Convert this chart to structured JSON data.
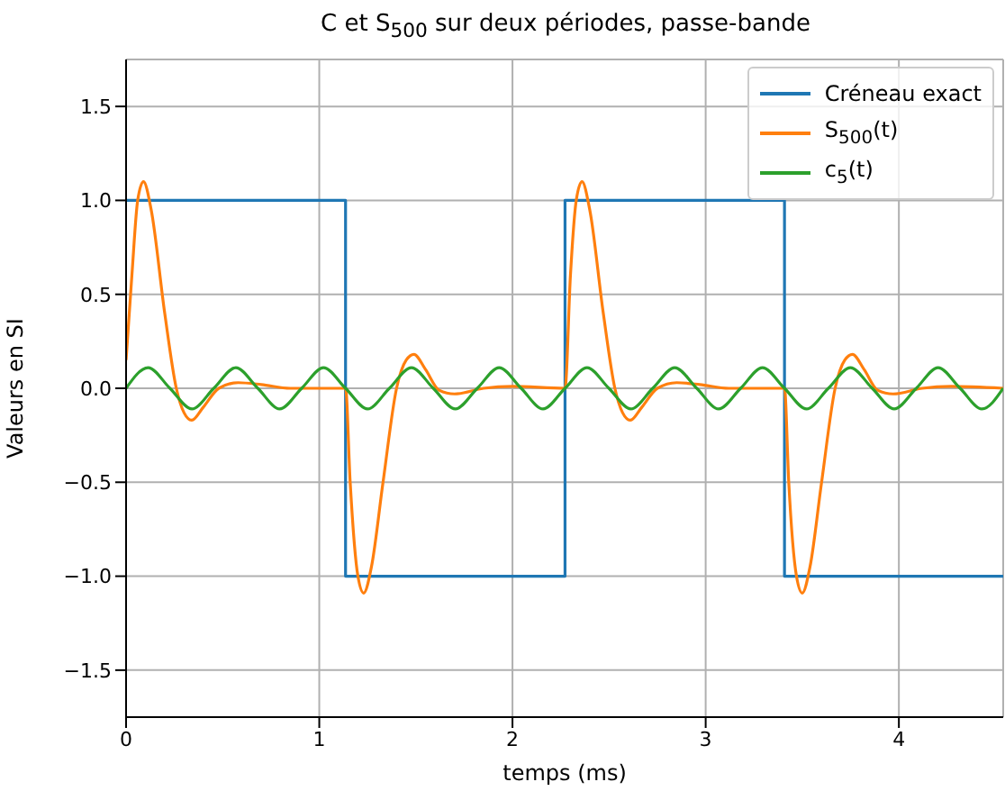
{
  "chart_data": {
    "type": "line",
    "title": "C et S$_{500}$ sur deux périodes, passe-bande",
    "xlabel": "temps (ms)",
    "ylabel": "Valeurs en SI",
    "xlim": [
      0,
      4.54
    ],
    "xticks": [
      0,
      1,
      2,
      3,
      4
    ],
    "ylim": [
      -1.75,
      1.75
    ],
    "yticks": [
      {
        "value": -1.5,
        "label": "−1.5"
      },
      {
        "value": -1.0,
        "label": "−1.0"
      },
      {
        "value": -0.5,
        "label": "−0.5"
      },
      {
        "value": 0,
        "label": "0.0"
      },
      {
        "value": 0.5,
        "label": "0.5"
      },
      {
        "value": 1.0,
        "label": "1.0"
      },
      {
        "value": 1.5,
        "label": "1.5"
      }
    ],
    "grid": true,
    "legend": "top right",
    "series": [
      {
        "name": "Créneau exact",
        "type": "step",
        "color": "#1f77b4",
        "x": [
          0,
          1.136,
          2.272,
          3.408,
          4.54
        ],
        "values": [
          1,
          -1,
          1,
          -1,
          -1
        ]
      },
      {
        "name": "S$_{500}$(t)",
        "color": "#ff7f0e",
        "x": [
          0,
          0.03,
          0.06,
          0.09,
          0.13,
          0.2,
          0.26,
          0.3,
          0.34,
          0.4,
          0.48,
          0.58,
          0.7,
          0.85,
          1.0,
          1.136,
          1.16,
          1.2,
          1.23,
          1.27,
          1.33,
          1.4,
          1.45,
          1.49,
          1.55,
          1.62,
          1.7,
          1.85,
          2.0,
          2.272,
          2.3,
          2.33,
          2.36,
          2.4,
          2.47,
          2.53,
          2.57,
          2.61,
          2.67,
          2.75,
          2.85,
          2.97,
          3.12,
          3.27,
          3.408,
          3.43,
          3.47,
          3.5,
          3.54,
          3.6,
          3.67,
          3.72,
          3.76,
          3.82,
          3.89,
          3.97,
          4.12,
          4.27,
          4.54
        ],
        "values": [
          0.15,
          0.6,
          1.0,
          1.1,
          0.95,
          0.4,
          0.0,
          -0.13,
          -0.17,
          -0.1,
          0.0,
          0.03,
          0.02,
          0.0,
          0.0,
          0.0,
          -0.5,
          -1.0,
          -1.09,
          -0.95,
          -0.5,
          0.0,
          0.15,
          0.18,
          0.1,
          -0.01,
          -0.03,
          0.0,
          0.01,
          0.0,
          0.6,
          1.0,
          1.1,
          0.95,
          0.4,
          0.0,
          -0.13,
          -0.17,
          -0.1,
          0.0,
          0.03,
          0.02,
          0.0,
          0.0,
          0.0,
          -0.5,
          -1.0,
          -1.09,
          -0.95,
          -0.5,
          0.0,
          0.15,
          0.18,
          0.1,
          -0.01,
          -0.03,
          0.0,
          0.01,
          0.0
        ]
      },
      {
        "name": "c$_{5}$(t)",
        "color": "#2ca02c",
        "x": [
          0,
          0.114,
          0.227,
          0.341,
          0.454,
          0.568,
          0.682,
          0.795,
          0.909,
          1.022,
          1.136,
          1.25,
          1.363,
          1.477,
          1.59,
          1.704,
          1.818,
          1.931,
          2.045,
          2.158,
          2.272,
          2.386,
          2.499,
          2.613,
          2.726,
          2.84,
          2.954,
          3.067,
          3.181,
          3.294,
          3.408,
          3.522,
          3.635,
          3.749,
          3.862,
          3.976,
          4.09,
          4.203,
          4.317,
          4.43,
          4.54
        ],
        "values": [
          0,
          0.11,
          0,
          -0.11,
          0,
          0.11,
          0,
          -0.11,
          0,
          0.11,
          0,
          -0.11,
          0,
          0.11,
          0,
          -0.11,
          0,
          0.11,
          0,
          -0.11,
          0,
          0.11,
          0,
          -0.11,
          0,
          0.11,
          0,
          -0.11,
          0,
          0.11,
          0,
          -0.11,
          0,
          0.11,
          0,
          -0.11,
          0,
          0.11,
          0,
          -0.11,
          0
        ]
      }
    ]
  }
}
